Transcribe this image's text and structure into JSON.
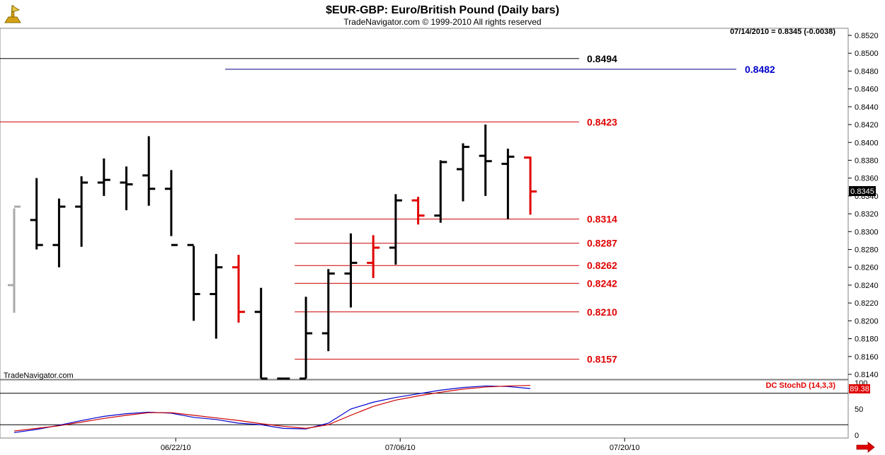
{
  "chart_data": {
    "type": "ohlc",
    "title": "$EUR-GBP:  Euro/British Pound  (Daily bars)",
    "subtitle": "TradeNavigator.com © 1999-2010 All rights reserved",
    "readout": "07/14/2010 = 0.8345 (-0.0038)",
    "watermark": "TradeNavigator.com",
    "last_price": "0.8345",
    "price_axis": {
      "ylim": [
        0.813,
        0.853
      ],
      "ticks": [
        "0.8520",
        "0.8500",
        "0.8480",
        "0.8460",
        "0.8440",
        "0.8420",
        "0.8400",
        "0.8380",
        "0.8360",
        "0.8340",
        "0.8320",
        "0.8300",
        "0.8280",
        "0.8260",
        "0.8240",
        "0.8220",
        "0.8200",
        "0.8180",
        "0.8160",
        "0.8140"
      ]
    },
    "x_ticks": [
      "06/22/10",
      "07/06/10",
      "07/20/10"
    ],
    "levels": [
      {
        "label": "0.8494",
        "value": 0.8494,
        "color": "#000000",
        "label_color": "#000000",
        "from_bar": -1
      },
      {
        "label": "0.8482",
        "value": 0.8482,
        "color": "#000080",
        "label_color": "#0000cc",
        "from_bar": 9.4,
        "label_far": true
      },
      {
        "label": "0.8423",
        "value": 0.8423,
        "color": "#cc0000",
        "label_color": "#e00000",
        "from_bar": -1
      },
      {
        "label": "0.8314",
        "value": 0.8314,
        "color": "#cc0000",
        "label_color": "#e00000",
        "from_bar": 12.5
      },
      {
        "label": "0.8287",
        "value": 0.8287,
        "color": "#cc0000",
        "label_color": "#e00000",
        "from_bar": 12.5
      },
      {
        "label": "0.8262",
        "value": 0.8262,
        "color": "#cc0000",
        "label_color": "#e00000",
        "from_bar": 12.5
      },
      {
        "label": "0.8242",
        "value": 0.8242,
        "color": "#cc0000",
        "label_color": "#e00000",
        "from_bar": 12.5
      },
      {
        "label": "0.8210",
        "value": 0.821,
        "color": "#cc0000",
        "label_color": "#e00000",
        "from_bar": 12.5
      },
      {
        "label": "0.8157",
        "value": 0.8157,
        "color": "#cc0000",
        "label_color": "#e00000",
        "from_bar": 12.5
      }
    ],
    "bars": [
      {
        "o": 0.824,
        "h": 0.8326,
        "l": 0.8209,
        "c": 0.8328,
        "color": "#aaaaaa"
      },
      {
        "o": 0.8313,
        "h": 0.836,
        "l": 0.828,
        "c": 0.8285,
        "color": "#000000"
      },
      {
        "o": 0.8285,
        "h": 0.8337,
        "l": 0.826,
        "c": 0.8328,
        "color": "#000000"
      },
      {
        "o": 0.8328,
        "h": 0.8362,
        "l": 0.8283,
        "c": 0.8355,
        "color": "#000000"
      },
      {
        "o": 0.8355,
        "h": 0.8382,
        "l": 0.834,
        "c": 0.8358,
        "color": "#000000"
      },
      {
        "o": 0.8355,
        "h": 0.8373,
        "l": 0.8324,
        "c": 0.8353,
        "color": "#000000"
      },
      {
        "o": 0.8363,
        "h": 0.8407,
        "l": 0.8329,
        "c": 0.8348,
        "color": "#000000"
      },
      {
        "o": 0.8348,
        "h": 0.8369,
        "l": 0.8295,
        "c": 0.8285,
        "color": "#000000"
      },
      {
        "o": 0.8285,
        "h": 0.8284,
        "l": 0.82,
        "c": 0.823,
        "color": "#000000"
      },
      {
        "o": 0.823,
        "h": 0.8275,
        "l": 0.818,
        "c": 0.826,
        "color": "#000000"
      },
      {
        "o": 0.826,
        "h": 0.8274,
        "l": 0.8198,
        "c": 0.821,
        "color": "#e00000"
      },
      {
        "o": 0.821,
        "h": 0.8237,
        "l": 0.813,
        "c": 0.813,
        "color": "#000000"
      },
      {
        "o": 0.813,
        "h": 0.8132,
        "l": 0.813,
        "c": 0.8132,
        "color": "#000000"
      },
      {
        "o": 0.8132,
        "h": 0.8227,
        "l": 0.813,
        "c": 0.8186,
        "color": "#000000"
      },
      {
        "o": 0.8186,
        "h": 0.8258,
        "l": 0.8166,
        "c": 0.8253,
        "color": "#000000"
      },
      {
        "o": 0.8253,
        "h": 0.8298,
        "l": 0.8215,
        "c": 0.8265,
        "color": "#000000"
      },
      {
        "o": 0.8265,
        "h": 0.8296,
        "l": 0.8248,
        "c": 0.8282,
        "color": "#e00000"
      },
      {
        "o": 0.8282,
        "h": 0.8342,
        "l": 0.8263,
        "c": 0.8335,
        "color": "#000000"
      },
      {
        "o": 0.8335,
        "h": 0.8339,
        "l": 0.8308,
        "c": 0.8318,
        "color": "#e00000"
      },
      {
        "o": 0.8318,
        "h": 0.838,
        "l": 0.831,
        "c": 0.8378,
        "color": "#000000"
      },
      {
        "o": 0.837,
        "h": 0.8399,
        "l": 0.8334,
        "c": 0.8395,
        "color": "#000000"
      },
      {
        "o": 0.8385,
        "h": 0.842,
        "l": 0.834,
        "c": 0.8379,
        "color": "#000000"
      },
      {
        "o": 0.8376,
        "h": 0.8393,
        "l": 0.8314,
        "c": 0.8384,
        "color": "#000000"
      },
      {
        "o": 0.8383,
        "h": 0.8384,
        "l": 0.8319,
        "c": 0.8345,
        "color": "#e00000"
      }
    ],
    "indicator": {
      "name": "DC StochD (14,3,3)",
      "value": "89.38",
      "ylim": [
        0,
        100
      ],
      "ticks": [
        "100",
        "50",
        "0"
      ],
      "guides": [
        80,
        20
      ],
      "series": [
        {
          "color": "#0000cc",
          "values": [
            5,
            11,
            19,
            28,
            36,
            41,
            44,
            42,
            34,
            30,
            23,
            20,
            13,
            12,
            23,
            50,
            63,
            72,
            79,
            86,
            91,
            94,
            93,
            89
          ]
        },
        {
          "color": "#cc0000",
          "values": [
            8,
            13,
            18,
            25,
            32,
            38,
            43,
            43,
            38,
            33,
            28,
            22,
            17,
            13,
            20,
            38,
            55,
            67,
            75,
            82,
            88,
            92,
            94,
            95
          ]
        }
      ]
    }
  }
}
